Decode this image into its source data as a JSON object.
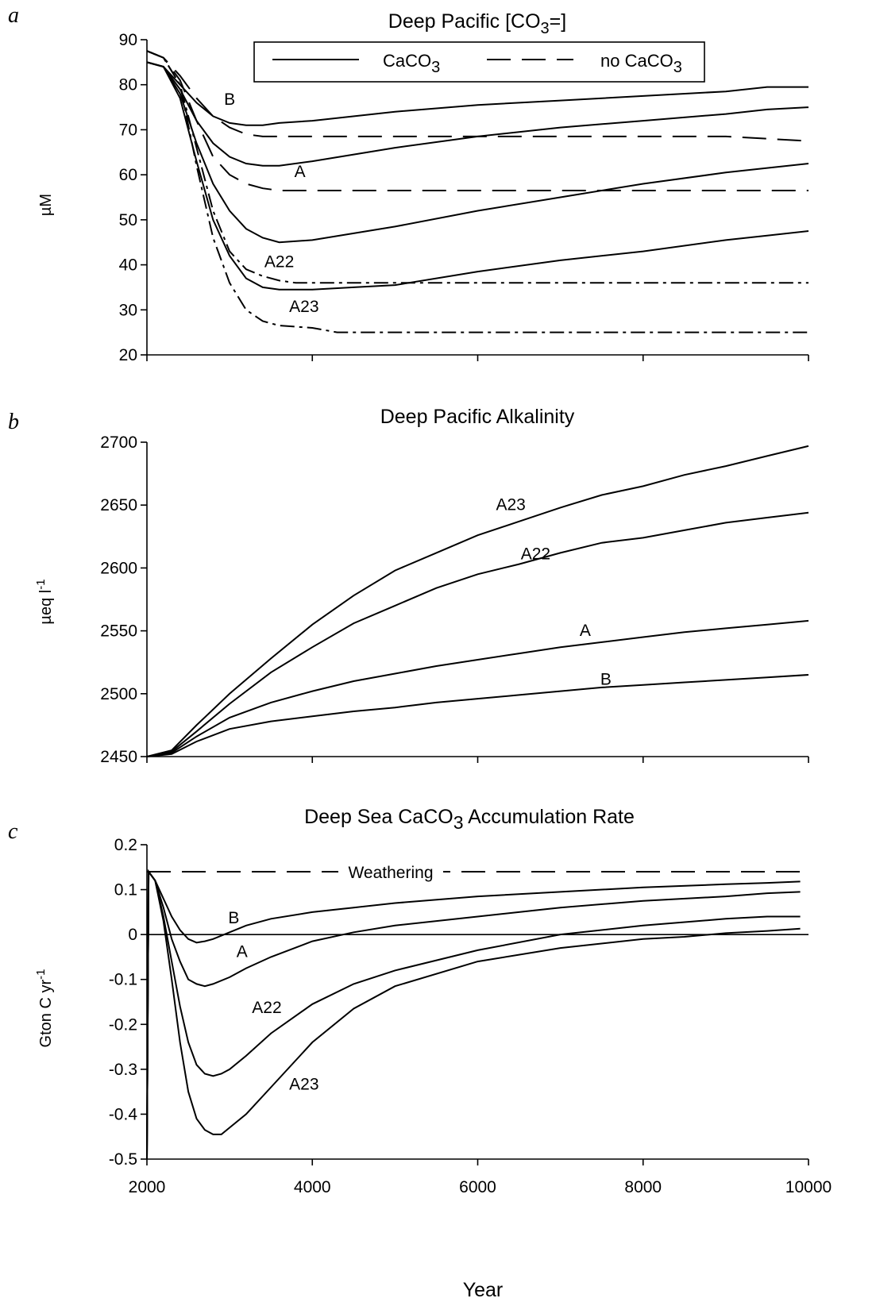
{
  "figure": {
    "xlabel": "Year"
  },
  "chart_data": [
    {
      "id": "a",
      "type": "line",
      "panel_letter": "a",
      "title": "Deep Pacific [CO3=]",
      "ylabel": "µM",
      "xlim": [
        2000,
        10000
      ],
      "ylim": [
        20,
        90
      ],
      "yticks": [
        "20",
        "30",
        "40",
        "50",
        "60",
        "70",
        "80",
        "90"
      ],
      "xticks": [
        2000,
        4000,
        6000,
        8000,
        10000
      ],
      "show_xtick_labels": false,
      "legend": {
        "placement": "top-center",
        "solid_label": "CaCO3",
        "dashed_label": "no CaCO3"
      },
      "series": [
        {
          "label": "B",
          "style": "solid",
          "x": [
            2000,
            2200,
            2400,
            2600,
            2800,
            3000,
            3200,
            3400,
            3600,
            4000,
            5000,
            6000,
            7000,
            8000,
            9000,
            9500,
            10000
          ],
          "y": [
            85,
            84,
            80,
            76,
            73,
            71.5,
            71,
            71,
            71.5,
            72,
            74,
            75.5,
            76.5,
            77.5,
            78.5,
            79.5,
            79.5
          ]
        },
        {
          "label": "",
          "style": "solid",
          "x": [
            2000,
            2200,
            2400,
            2600,
            2800,
            3000,
            3200,
            3400,
            3600,
            4000,
            5000,
            6000,
            7000,
            8000,
            9000,
            9500,
            10000
          ],
          "y": [
            85,
            84,
            79,
            72,
            67,
            64,
            62.5,
            62,
            62,
            63,
            66,
            68.5,
            70.5,
            72,
            73.5,
            74.5,
            75
          ]
        },
        {
          "label": "A",
          "style": "solid",
          "x": [
            2000,
            2200,
            2400,
            2600,
            2800,
            3000,
            3200,
            3400,
            3600,
            4000,
            5000,
            6000,
            7000,
            8000,
            9000,
            9500,
            10000
          ],
          "y": [
            85,
            84,
            78,
            67,
            58,
            52,
            48,
            46,
            45,
            45.5,
            48.5,
            52,
            55,
            58,
            60.5,
            61.5,
            62.5
          ]
        },
        {
          "label": "A22",
          "style": "solid",
          "x": [
            2000,
            2200,
            2400,
            2600,
            2800,
            3000,
            3200,
            3400,
            3600,
            4000,
            4500,
            5000,
            6000,
            7000,
            8000,
            9000,
            9500,
            10000
          ],
          "y": [
            85,
            84,
            77,
            63,
            50,
            42,
            37,
            35,
            34.5,
            34.5,
            35,
            35.5,
            38.5,
            41,
            43,
            45.5,
            46.5,
            47.5
          ]
        },
        {
          "label": "",
          "style": "dashed",
          "x": [
            2000,
            2200,
            2400,
            2600,
            2800,
            3000,
            3200,
            3400,
            3600,
            4000,
            5000,
            6000,
            7000,
            8000,
            9000,
            10000
          ],
          "y": [
            87.5,
            86,
            82,
            77,
            73,
            70.5,
            69,
            68.5,
            68.5,
            68.5,
            68.5,
            68.5,
            68.5,
            68.5,
            68.5,
            67.5
          ]
        },
        {
          "label": "",
          "style": "dashed",
          "x": [
            2000,
            2200,
            2400,
            2600,
            2800,
            3000,
            3200,
            3400,
            3600,
            4000,
            5000,
            6000,
            7000,
            8000,
            9000,
            10000
          ],
          "y": [
            87.5,
            86,
            81,
            72,
            64,
            60,
            58,
            57,
            56.5,
            56.5,
            56.5,
            56.5,
            56.5,
            56.5,
            56.5,
            56.5
          ]
        },
        {
          "label": "",
          "style": "dashdot",
          "x": [
            2000,
            2200,
            2400,
            2600,
            2800,
            3000,
            3200,
            3400,
            3600,
            3800,
            4000,
            5000,
            6000,
            7000,
            8000,
            9000,
            10000
          ],
          "y": [
            87.5,
            86,
            80,
            66,
            52,
            43,
            39,
            37.5,
            36.5,
            36,
            36,
            36,
            36,
            36,
            36,
            36,
            36
          ]
        },
        {
          "label": "A23",
          "style": "dashdot",
          "x": [
            2000,
            2200,
            2400,
            2600,
            2800,
            3000,
            3200,
            3400,
            3600,
            4000,
            4300,
            5000,
            6000,
            7000,
            8000,
            9000,
            10000
          ],
          "y": [
            87.5,
            86,
            80,
            62,
            46,
            36,
            30,
            27.5,
            26.5,
            26,
            25,
            25,
            25,
            25,
            25,
            25,
            25
          ]
        }
      ],
      "annotations": [
        {
          "text": "B",
          "x": 3000,
          "y": 75.5
        },
        {
          "text": "A",
          "x": 3850,
          "y": 59.5
        },
        {
          "text": "A22",
          "x": 3600,
          "y": 39.5
        },
        {
          "text": "A23",
          "x": 3900,
          "y": 29.5
        }
      ]
    },
    {
      "id": "b",
      "type": "line",
      "panel_letter": "b",
      "title": "Deep Pacific Alkalinity",
      "ylabel": "µeq l-1",
      "xlim": [
        2000,
        10000
      ],
      "ylim": [
        2450,
        2700
      ],
      "yticks": [
        "2450",
        "2500",
        "2550",
        "2600",
        "2650",
        "2700"
      ],
      "xticks": [
        2000,
        4000,
        6000,
        8000,
        10000
      ],
      "show_xtick_labels": false,
      "series": [
        {
          "label": "A23",
          "style": "solid",
          "x": [
            2000,
            2300,
            2600,
            3000,
            3500,
            4000,
            4500,
            5000,
            5500,
            6000,
            6500,
            7000,
            7500,
            8000,
            8500,
            9000,
            9500,
            10000
          ],
          "y": [
            2450,
            2455,
            2475,
            2500,
            2528,
            2555,
            2578,
            2598,
            2612,
            2626,
            2637,
            2648,
            2658,
            2665,
            2674,
            2681,
            2689,
            2697
          ]
        },
        {
          "label": "A22",
          "style": "solid",
          "x": [
            2000,
            2300,
            2600,
            3000,
            3500,
            4000,
            4500,
            5000,
            5500,
            6000,
            6500,
            7000,
            7500,
            8000,
            8500,
            9000,
            9500,
            10000
          ],
          "y": [
            2450,
            2454,
            2470,
            2492,
            2517,
            2537,
            2556,
            2570,
            2584,
            2595,
            2603,
            2612,
            2620,
            2624,
            2630,
            2636,
            2640,
            2644
          ]
        },
        {
          "label": "A",
          "style": "solid",
          "x": [
            2000,
            2300,
            2600,
            3000,
            3500,
            4000,
            4500,
            5000,
            5500,
            6000,
            6500,
            7000,
            7500,
            8000,
            8500,
            9000,
            9500,
            10000
          ],
          "y": [
            2450,
            2453,
            2466,
            2481,
            2493,
            2502,
            2510,
            2516,
            2522,
            2527,
            2532,
            2537,
            2541,
            2545,
            2549,
            2552,
            2555,
            2558
          ]
        },
        {
          "label": "B",
          "style": "solid",
          "x": [
            2000,
            2300,
            2600,
            3000,
            3500,
            4000,
            4500,
            5000,
            5500,
            6000,
            6500,
            7000,
            7500,
            8000,
            8500,
            9000,
            9500,
            10000
          ],
          "y": [
            2450,
            2452,
            2462,
            2472,
            2478,
            2482,
            2486,
            2489,
            2493,
            2496,
            2499,
            2502,
            2505,
            2507,
            2509,
            2511,
            2513,
            2515
          ]
        }
      ],
      "annotations": [
        {
          "text": "A23",
          "x": 6400,
          "y": 2646
        },
        {
          "text": "A22",
          "x": 6700,
          "y": 2607
        },
        {
          "text": "A",
          "x": 7300,
          "y": 2546
        },
        {
          "text": "B",
          "x": 7550,
          "y": 2507
        }
      ]
    },
    {
      "id": "c",
      "type": "line",
      "panel_letter": "c",
      "title": "Deep Sea CaCO3 Accumulation Rate",
      "ylabel": "Gton C yr-1",
      "xlim": [
        2000,
        10000
      ],
      "ylim": [
        -0.5,
        0.2
      ],
      "yticks": [
        "-0.5",
        "-0.4",
        "-0.3",
        "-0.2",
        "-0.1",
        "0",
        "0.1",
        "0.2"
      ],
      "xticks": [
        2000,
        4000,
        6000,
        8000,
        10000
      ],
      "xtick_labels": [
        "2000",
        "4000",
        "6000",
        "8000",
        "10000"
      ],
      "show_xtick_labels": true,
      "weathering": {
        "label": "Weathering",
        "value": 0.14
      },
      "zero_line": 0,
      "series": [
        {
          "label": "B",
          "style": "solid",
          "x": [
            2000,
            2020,
            2100,
            2200,
            2300,
            2400,
            2500,
            2600,
            2700,
            2800,
            3000,
            3200,
            3500,
            4000,
            4500,
            5000,
            6000,
            7000,
            8000,
            9000,
            9500,
            9900
          ],
          "y": [
            -0.5,
            0.14,
            0.12,
            0.08,
            0.04,
            0.01,
            -0.01,
            -0.018,
            -0.015,
            -0.01,
            0.005,
            0.02,
            0.035,
            0.05,
            0.06,
            0.07,
            0.085,
            0.095,
            0.105,
            0.112,
            0.115,
            0.118
          ]
        },
        {
          "label": "A",
          "style": "solid",
          "x": [
            2000,
            2020,
            2100,
            2200,
            2300,
            2400,
            2500,
            2600,
            2700,
            2800,
            3000,
            3200,
            3500,
            4000,
            4500,
            5000,
            6000,
            7000,
            8000,
            9000,
            9500,
            9900
          ],
          "y": [
            -0.5,
            0.14,
            0.12,
            0.06,
            -0.01,
            -0.06,
            -0.1,
            -0.11,
            -0.115,
            -0.11,
            -0.095,
            -0.075,
            -0.05,
            -0.015,
            0.005,
            0.02,
            0.04,
            0.06,
            0.075,
            0.085,
            0.092,
            0.095
          ]
        },
        {
          "label": "A22",
          "style": "solid",
          "x": [
            2000,
            2020,
            2100,
            2200,
            2300,
            2400,
            2500,
            2600,
            2700,
            2800,
            2900,
            3000,
            3200,
            3500,
            4000,
            4500,
            5000,
            6000,
            7000,
            8000,
            9000,
            9500,
            9900
          ],
          "y": [
            -0.5,
            0.14,
            0.12,
            0.04,
            -0.06,
            -0.16,
            -0.24,
            -0.29,
            -0.31,
            -0.315,
            -0.31,
            -0.3,
            -0.27,
            -0.22,
            -0.155,
            -0.11,
            -0.08,
            -0.035,
            0,
            0.02,
            0.035,
            0.04,
            0.04
          ]
        },
        {
          "label": "A23",
          "style": "solid",
          "x": [
            2000,
            2020,
            2100,
            2200,
            2300,
            2400,
            2500,
            2600,
            2700,
            2800,
            2900,
            3000,
            3200,
            3500,
            4000,
            4500,
            5000,
            6000,
            7000,
            8000,
            8500,
            9000,
            9500,
            9900
          ],
          "y": [
            -0.5,
            0.14,
            0.12,
            0.03,
            -0.1,
            -0.24,
            -0.35,
            -0.41,
            -0.435,
            -0.445,
            -0.445,
            -0.43,
            -0.4,
            -0.34,
            -0.24,
            -0.165,
            -0.115,
            -0.06,
            -0.03,
            -0.01,
            -0.005,
            0.003,
            0.008,
            0.013
          ]
        }
      ],
      "annotations": [
        {
          "text": "B",
          "x": 3050,
          "y": 0.025
        },
        {
          "text": "A",
          "x": 3150,
          "y": -0.05
        },
        {
          "text": "A22",
          "x": 3450,
          "y": -0.175
        },
        {
          "text": "A23",
          "x": 3900,
          "y": -0.345
        }
      ]
    }
  ]
}
